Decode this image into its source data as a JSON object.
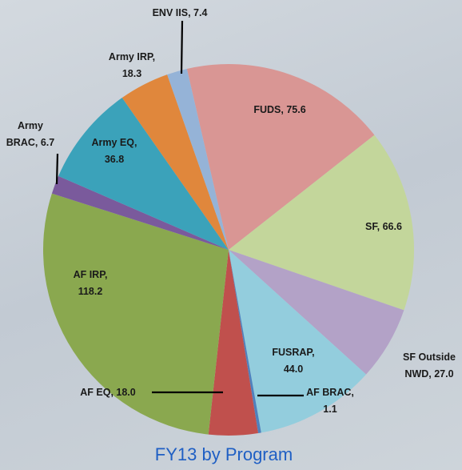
{
  "chart_data": {
    "type": "pie",
    "title": "FY13 by Program",
    "categories": [
      "FUDS",
      "SF",
      "SF Outside NWD",
      "FUSRAP",
      "AF BRAC",
      "AF EQ",
      "AF IRP",
      "Army BRAC",
      "Army EQ",
      "Army IRP",
      "ENV IIS"
    ],
    "values": [
      75.6,
      66.6,
      27,
      44,
      1.1,
      18,
      118.2,
      6.7,
      36.8,
      18.3,
      7.4
    ],
    "value_labels": [
      "75.6",
      "66.6",
      "27.0",
      "44.0",
      "1.1",
      "18.0",
      "118.2",
      "6.7",
      "36.8",
      "18.3",
      "7.4"
    ],
    "colors": [
      "#d99694",
      "#c3d69b",
      "#b3a2c7",
      "#93cddd",
      "#4f81bd",
      "#c0504d",
      "#8aa84f",
      "#7a5a9c",
      "#3ba2ba",
      "#e0873c",
      "#95b3d7"
    ]
  }
}
